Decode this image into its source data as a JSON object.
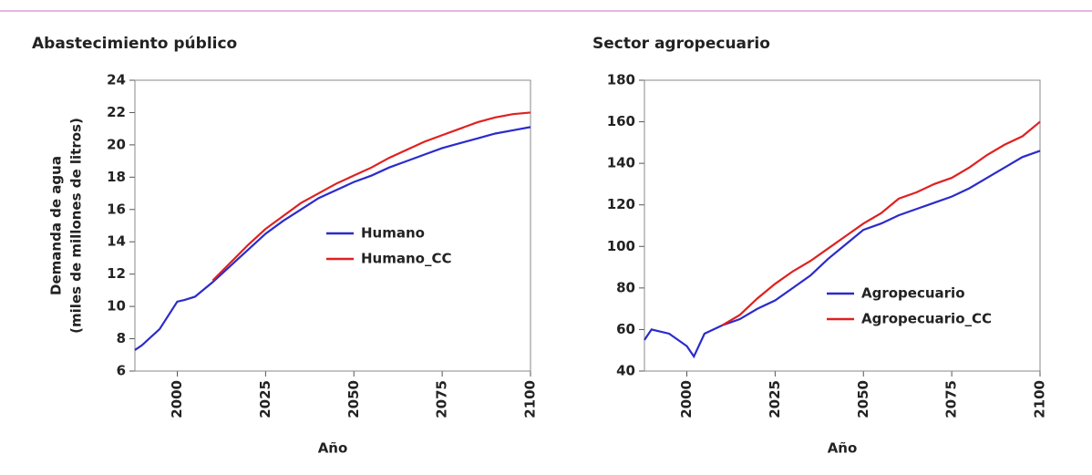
{
  "chart_data": [
    {
      "type": "line",
      "title": "Abastecimiento público",
      "x_label": "Año",
      "y_label": [
        "Demanda de agua",
        "(miles de millones de litros)"
      ],
      "x": [
        1988,
        1990,
        1995,
        2000,
        2002,
        2005,
        2010,
        2015,
        2020,
        2025,
        2030,
        2035,
        2040,
        2045,
        2050,
        2055,
        2060,
        2065,
        2070,
        2075,
        2080,
        2085,
        2090,
        2095,
        2100
      ],
      "series": [
        {
          "name": "Humano",
          "color": "#2b2bcc",
          "values": [
            7.3,
            7.6,
            8.6,
            10.3,
            10.4,
            10.6,
            11.5,
            12.5,
            13.5,
            14.5,
            15.3,
            16.0,
            16.7,
            17.2,
            17.7,
            18.1,
            18.6,
            19.0,
            19.4,
            19.8,
            20.1,
            20.4,
            20.7,
            20.9,
            21.1
          ]
        },
        {
          "name": "Humano_CC",
          "color": "#e02020",
          "values": [
            null,
            null,
            null,
            null,
            null,
            null,
            11.6,
            12.7,
            13.8,
            14.8,
            15.6,
            16.4,
            17.0,
            17.6,
            18.1,
            18.6,
            19.2,
            19.7,
            20.2,
            20.6,
            21.0,
            21.4,
            21.7,
            21.9,
            22.0
          ]
        }
      ],
      "xlim": [
        1988,
        2100
      ],
      "xticks": [
        2000,
        2025,
        2050,
        2075,
        2100
      ],
      "ylim": [
        6,
        24
      ],
      "yticks": [
        6,
        8,
        10,
        12,
        14,
        16,
        18,
        20,
        22,
        24
      ],
      "legend": "center right"
    },
    {
      "type": "line",
      "title": "Sector agropecuario",
      "x_label": "Año",
      "x": [
        1988,
        1990,
        1995,
        2000,
        2002,
        2005,
        2010,
        2015,
        2020,
        2025,
        2030,
        2035,
        2040,
        2045,
        2050,
        2055,
        2060,
        2065,
        2070,
        2075,
        2080,
        2085,
        2090,
        2095,
        2100
      ],
      "series": [
        {
          "name": "Agropecuario",
          "color": "#2b2bcc",
          "values": [
            55,
            60,
            58,
            52,
            47,
            58,
            62,
            65,
            70,
            74,
            80,
            86,
            94,
            101,
            108,
            111,
            115,
            118,
            121,
            124,
            128,
            133,
            138,
            143,
            146
          ]
        },
        {
          "name": "Agropecuario_CC",
          "color": "#e02020",
          "values": [
            null,
            null,
            null,
            null,
            null,
            null,
            62,
            67,
            75,
            82,
            88,
            93,
            99,
            105,
            111,
            116,
            123,
            126,
            130,
            133,
            138,
            144,
            149,
            153,
            160
          ]
        }
      ],
      "xlim": [
        1988,
        2100
      ],
      "xticks": [
        2000,
        2025,
        2050,
        2075,
        2100
      ],
      "ylim": [
        40,
        180
      ],
      "yticks": [
        40,
        60,
        80,
        100,
        120,
        140,
        160,
        180
      ],
      "legend": "lower right"
    }
  ]
}
